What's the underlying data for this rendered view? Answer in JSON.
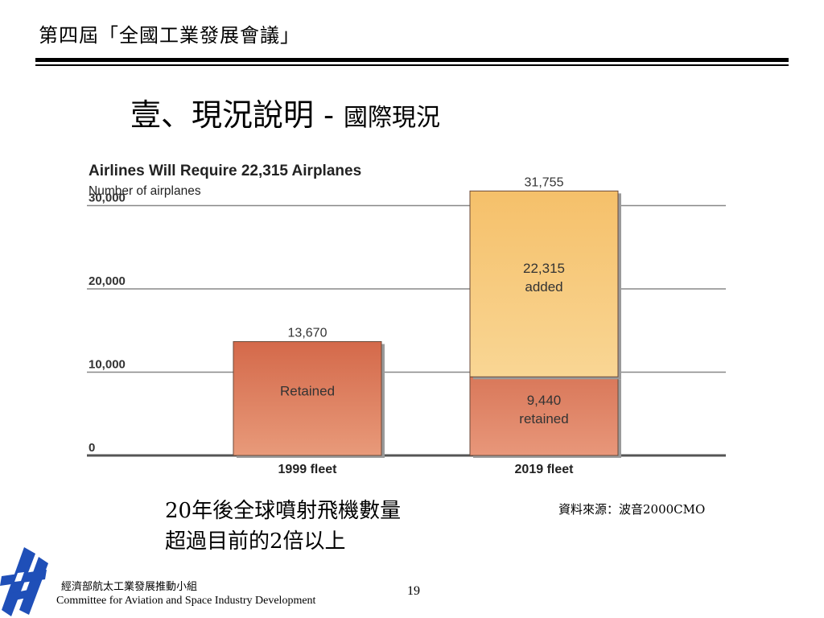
{
  "slide": {
    "header_title": "第四屆「全國工業發展會議」",
    "heading_main": "壹、現況說明",
    "heading_dash": " - ",
    "heading_sub": "國際現況",
    "caption_line1": "20年後全球噴射飛機數量",
    "caption_line2": "超過目前的2倍以上",
    "source": "資料來源：波音2000CMO",
    "org_cn": "經濟部航太工業發展推動小組",
    "org_en": "Committee for Aviation and Space Industry Development",
    "page_number": "19"
  },
  "chart_data": {
    "type": "bar",
    "title": "Airlines Will Require 22,315 Airplanes",
    "ylabel": "Number of airplanes",
    "ylim": [
      0,
      30000
    ],
    "yticks": [
      "0",
      "10,000",
      "20,000",
      "30,000"
    ],
    "ytick_values": [
      0,
      10000,
      20000,
      30000
    ],
    "categories": [
      "1999 fleet",
      "2019 fleet"
    ],
    "series": [
      {
        "name": "Retained",
        "values": [
          13670,
          9440
        ],
        "color": "#d4704f"
      },
      {
        "name": "added",
        "values": [
          0,
          22315
        ],
        "color": "#f5c572"
      }
    ],
    "totals": [
      13670,
      31755
    ],
    "total_labels": [
      "13,670",
      "31,755"
    ],
    "segment_labels": [
      {
        "category": "1999 fleet",
        "lines": [
          "Retained"
        ]
      },
      {
        "category": "2019 fleet",
        "lines": [
          "9,440",
          "retained"
        ]
      },
      {
        "category": "2019 fleet",
        "lines": [
          "22,315",
          "added"
        ]
      }
    ],
    "grid": true,
    "stacked": true
  }
}
